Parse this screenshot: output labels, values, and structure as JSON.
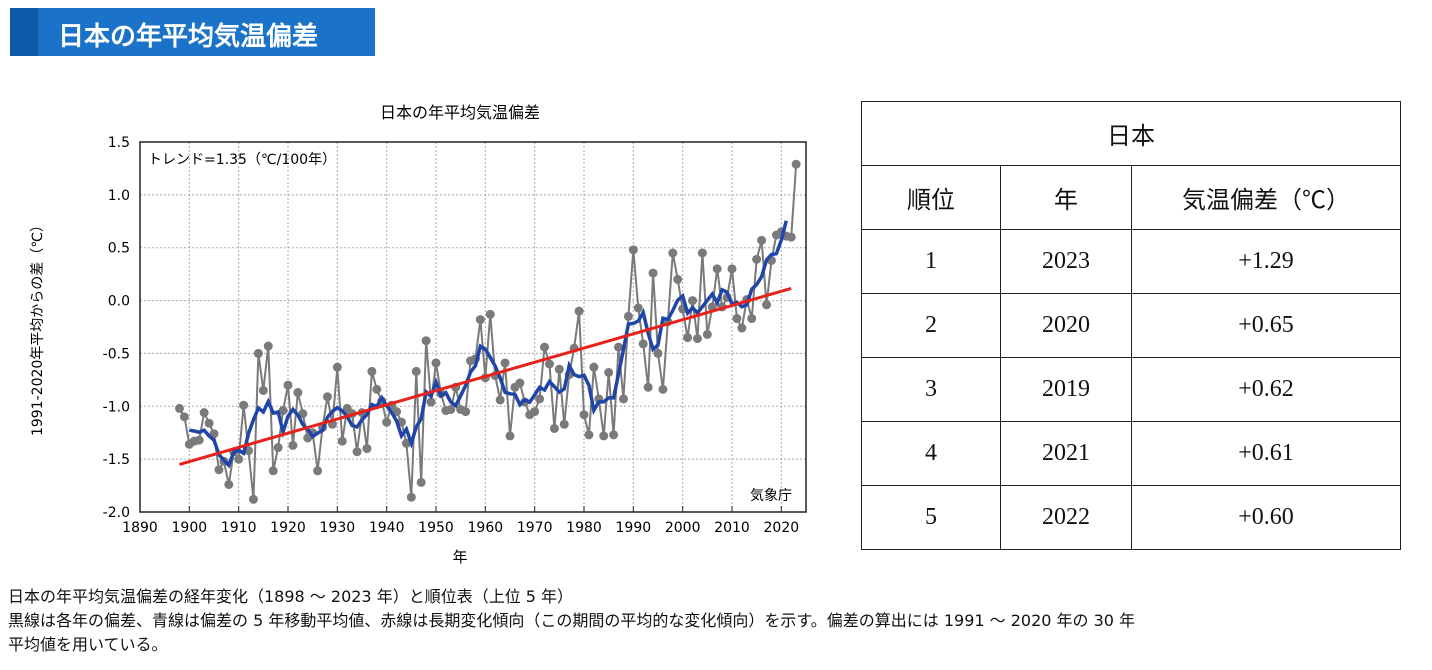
{
  "banner": {
    "title": "日本の年平均気温偏差"
  },
  "chart_data": {
    "type": "line",
    "title": "日本の年平均気温偏差",
    "xlabel": "年",
    "ylabel": "1991-2020年平均からの差（℃）",
    "annotation": "トレンド=1.35（℃/100年）",
    "credit": "気象庁",
    "xlim": [
      1890,
      2025
    ],
    "ylim": [
      -2.0,
      1.5
    ],
    "xticks": [
      1890,
      1900,
      1910,
      1920,
      1930,
      1940,
      1950,
      1960,
      1970,
      1980,
      1990,
      2000,
      2010,
      2020
    ],
    "yticks": [
      "1.5",
      "1.0",
      "0.5",
      "0.0",
      "-0.5",
      "-1.0",
      "-1.5",
      "-2.0"
    ],
    "grid": true,
    "x_start": 1898,
    "series": [
      {
        "role": "annual anomaly",
        "color": "#7a7a7a",
        "values": [
          -1.02,
          -1.1,
          -1.36,
          -1.33,
          -1.32,
          -1.06,
          -1.16,
          -1.26,
          -1.6,
          -1.52,
          -1.74,
          -1.43,
          -1.5,
          -0.99,
          -1.42,
          -1.88,
          -0.5,
          -0.85,
          -0.43,
          -1.61,
          -1.39,
          -1.04,
          -0.8,
          -1.37,
          -0.87,
          -1.07,
          -1.3,
          -1.25,
          -1.61,
          -1.2,
          -0.91,
          -1.17,
          -0.63,
          -1.33,
          -1.02,
          -1.07,
          -1.43,
          -1.06,
          -1.4,
          -0.67,
          -0.84,
          -0.95,
          -1.15,
          -0.99,
          -1.05,
          -1.15,
          -1.35,
          -1.86,
          -0.67,
          -1.72,
          -0.38,
          -0.96,
          -0.59,
          -0.88,
          -1.04,
          -1.03,
          -0.82,
          -1.03,
          -1.05,
          -0.57,
          -0.55,
          -0.18,
          -0.73,
          -0.13,
          -0.71,
          -0.94,
          -0.59,
          -1.28,
          -0.82,
          -0.78,
          -0.96,
          -1.08,
          -1.05,
          -0.93,
          -0.44,
          -0.6,
          -1.21,
          -0.65,
          -1.17,
          -0.7,
          -0.45,
          -0.1,
          -1.08,
          -1.27,
          -0.63,
          -0.93,
          -1.28,
          -0.68,
          -1.27,
          -0.44,
          -0.93,
          -0.15,
          0.48,
          -0.07,
          -0.41,
          -0.82,
          0.26,
          -0.5,
          -0.84,
          -0.2,
          0.45,
          0.2,
          -0.08,
          -0.35,
          0.0,
          -0.36,
          0.45,
          -0.32,
          -0.06,
          0.3,
          -0.06,
          0.03,
          0.3,
          -0.17,
          -0.26,
          0.01,
          -0.17,
          0.39,
          0.57,
          -0.04,
          0.38,
          0.62,
          0.65,
          0.61,
          0.6,
          1.29
        ]
      },
      {
        "role": "5-year moving average",
        "color": "#1f45a8"
      },
      {
        "role": "long-term trend",
        "color": "#e8211b"
      }
    ]
  },
  "table": {
    "title": "日本",
    "headers": [
      "順位",
      "年",
      "気温偏差（℃）"
    ],
    "rows": [
      [
        "1",
        "2023",
        "+1.29"
      ],
      [
        "2",
        "2020",
        "+0.65"
      ],
      [
        "3",
        "2019",
        "+0.62"
      ],
      [
        "4",
        "2021",
        "+0.61"
      ],
      [
        "5",
        "2022",
        "+0.60"
      ]
    ]
  },
  "caption": {
    "line1": "日本の年平均気温偏差の経年変化（1898 ～ 2023 年）と順位表（上位 5 年）",
    "line2": "黒線は各年の偏差、青線は偏差の 5 年移動平均値、赤線は長期変化傾向（この期間の平均的な変化傾向）を示す。偏差の算出には 1991 ～ 2020 年の 30 年",
    "line3": "平均値を用いている。"
  }
}
